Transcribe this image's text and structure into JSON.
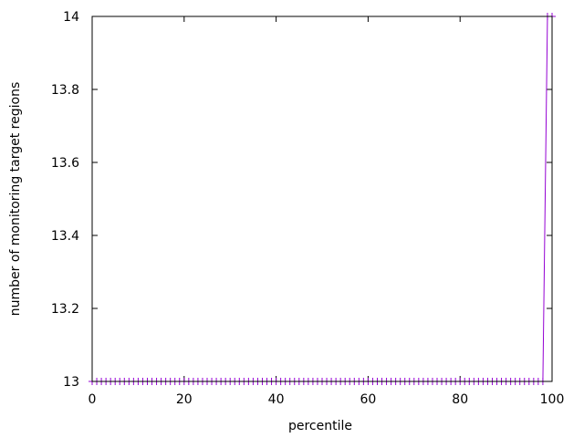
{
  "chart_data": {
    "type": "line",
    "title": "",
    "xlabel": "percentile",
    "ylabel": "number of monitoring target regions",
    "xlim": [
      0,
      100
    ],
    "ylim": [
      13,
      14
    ],
    "xticks": [
      "0",
      "20",
      "40",
      "60",
      "80",
      "100"
    ],
    "yticks": [
      "13",
      "13.2",
      "13.4",
      "13.6",
      "13.8",
      "14"
    ],
    "grid": false,
    "marker": "plus",
    "series": [
      {
        "color": "#9400d3",
        "x": [
          0,
          1,
          2,
          3,
          4,
          5,
          6,
          7,
          8,
          9,
          10,
          11,
          12,
          13,
          14,
          15,
          16,
          17,
          18,
          19,
          20,
          21,
          22,
          23,
          24,
          25,
          26,
          27,
          28,
          29,
          30,
          31,
          32,
          33,
          34,
          35,
          36,
          37,
          38,
          39,
          40,
          41,
          42,
          43,
          44,
          45,
          46,
          47,
          48,
          49,
          50,
          51,
          52,
          53,
          54,
          55,
          56,
          57,
          58,
          59,
          60,
          61,
          62,
          63,
          64,
          65,
          66,
          67,
          68,
          69,
          70,
          71,
          72,
          73,
          74,
          75,
          76,
          77,
          78,
          79,
          80,
          81,
          82,
          83,
          84,
          85,
          86,
          87,
          88,
          89,
          90,
          91,
          92,
          93,
          94,
          95,
          96,
          97,
          98,
          99,
          100
        ],
        "y": [
          13,
          13,
          13,
          13,
          13,
          13,
          13,
          13,
          13,
          13,
          13,
          13,
          13,
          13,
          13,
          13,
          13,
          13,
          13,
          13,
          13,
          13,
          13,
          13,
          13,
          13,
          13,
          13,
          13,
          13,
          13,
          13,
          13,
          13,
          13,
          13,
          13,
          13,
          13,
          13,
          13,
          13,
          13,
          13,
          13,
          13,
          13,
          13,
          13,
          13,
          13,
          13,
          13,
          13,
          13,
          13,
          13,
          13,
          13,
          13,
          13,
          13,
          13,
          13,
          13,
          13,
          13,
          13,
          13,
          13,
          13,
          13,
          13,
          13,
          13,
          13,
          13,
          13,
          13,
          13,
          13,
          13,
          13,
          13,
          13,
          13,
          13,
          13,
          13,
          13,
          13,
          13,
          13,
          13,
          13,
          13,
          13,
          13,
          13,
          14,
          14
        ]
      }
    ]
  }
}
